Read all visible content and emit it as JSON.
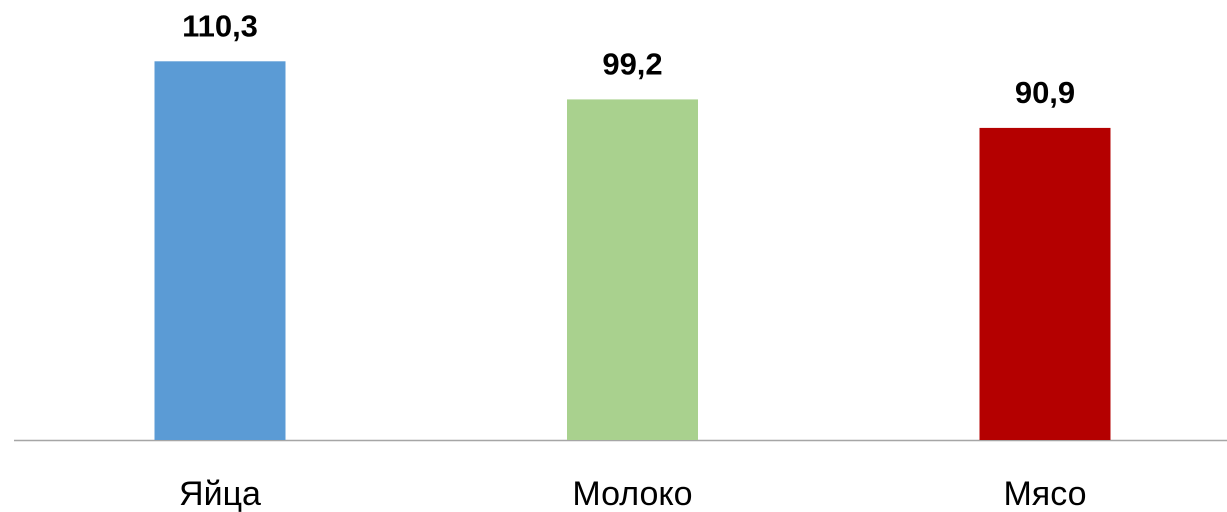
{
  "chart_data": {
    "type": "bar",
    "categories": [
      "Яйца",
      "Молоко",
      "Мясо"
    ],
    "values": [
      110.3,
      99.2,
      90.9
    ],
    "value_labels": [
      "110,3",
      "99,2",
      "90,9"
    ],
    "colors": [
      "#5b9bd5",
      "#a9d18e",
      "#b40000"
    ],
    "ylim": [
      0,
      120
    ]
  }
}
